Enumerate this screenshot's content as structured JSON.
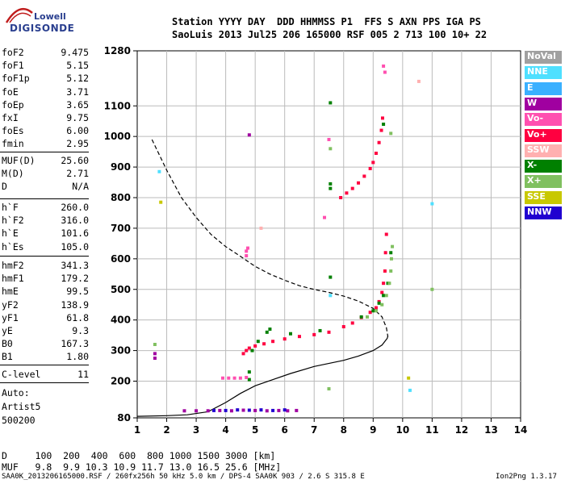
{
  "logo": {
    "line1": "Lowell",
    "line2": "DIGISONDE"
  },
  "header": {
    "row1": "Station YYYY DAY  DDD HHMMSS P1  FFS S AXN PPS IGA PS",
    "row2": "SaoLuis 2013 Jul25 206 165000 RSF 005 2 713 100 10+ 22"
  },
  "params_group1": [
    {
      "k": "foF2",
      "v": "9.475"
    },
    {
      "k": "foF1",
      "v": "5.15"
    },
    {
      "k": "foF1p",
      "v": "5.12"
    },
    {
      "k": "foE",
      "v": "3.71"
    },
    {
      "k": "foEp",
      "v": "3.65"
    },
    {
      "k": "fxI",
      "v": "9.75"
    },
    {
      "k": "foEs",
      "v": "6.00"
    },
    {
      "k": "fmin",
      "v": "2.95"
    }
  ],
  "params_group2": [
    {
      "k": "MUF(D)",
      "v": "25.60"
    },
    {
      "k": "M(D)",
      "v": "2.71"
    },
    {
      "k": "D",
      "v": "N/A"
    }
  ],
  "params_group3": [
    {
      "k": "h`F",
      "v": "260.0"
    },
    {
      "k": "h`F2",
      "v": "316.0"
    },
    {
      "k": "h`E",
      "v": "101.6"
    },
    {
      "k": "h`Es",
      "v": "105.0"
    }
  ],
  "params_group4": [
    {
      "k": "hmF2",
      "v": "341.3"
    },
    {
      "k": "hmF1",
      "v": "179.2"
    },
    {
      "k": "hmE",
      "v": "99.5"
    },
    {
      "k": "yF2",
      "v": "138.9"
    },
    {
      "k": "yF1",
      "v": "61.8"
    },
    {
      "k": "yE",
      "v": "9.3"
    },
    {
      "k": "B0",
      "v": "167.3"
    },
    {
      "k": "B1",
      "v": "1.80"
    }
  ],
  "params_group5": [
    {
      "k": "C-level",
      "v": "11"
    }
  ],
  "autoscale": {
    "line1": "Auto:",
    "line2": "Artist5",
    "line3": "500200"
  },
  "legend": [
    {
      "label": "NoVal",
      "color": "#a0a0a0"
    },
    {
      "label": "NNE",
      "color": "#4fe0ff"
    },
    {
      "label": "E",
      "color": "#3ab0ff"
    },
    {
      "label": "W",
      "color": "#a000a0"
    },
    {
      "label": "Vo-",
      "color": "#ff50b0"
    },
    {
      "label": "Vo+",
      "color": "#ff0040"
    },
    {
      "label": "SSW",
      "color": "#ffb0b0"
    },
    {
      "label": "X-",
      "color": "#008000"
    },
    {
      "label": "X+",
      "color": "#80c060"
    },
    {
      "label": "SSE",
      "color": "#c8c800"
    },
    {
      "label": "NNW",
      "color": "#2000d0"
    }
  ],
  "dmuf": {
    "row1": "D     100  200  400  600  800 1000 1500 3000 [km]",
    "row2": "MUF   9.8  9.9 10.3 10.9 11.7 13.0 16.5 25.6 [MHz]"
  },
  "footer": {
    "left": "SAA0K_2013206165000.RSF / 260fx256h 50 kHz 5.0 km / DPS-4 SAA0K 903 / 2.6 S 315.8 E",
    "right": "Ion2Png 1.3.17"
  },
  "chart_data": {
    "type": "scatter",
    "x_ticks": [
      1,
      2,
      3,
      4,
      5,
      6,
      7,
      8,
      9,
      10,
      11,
      12,
      13,
      14
    ],
    "y_ticks": [
      80,
      200,
      300,
      400,
      500,
      600,
      700,
      800,
      900,
      1000,
      1100,
      1280
    ],
    "xlim": [
      1,
      14
    ],
    "ylim": [
      80,
      1280
    ],
    "grid": true,
    "legend_position": "right",
    "series": [
      {
        "color": "#000000",
        "dash": true,
        "points": [
          [
            1.5,
            990
          ],
          [
            2.0,
            890
          ],
          [
            2.5,
            800
          ],
          [
            3.0,
            735
          ],
          [
            3.5,
            680
          ],
          [
            4.0,
            640
          ],
          [
            4.5,
            608
          ],
          [
            5.0,
            575
          ],
          [
            5.5,
            550
          ],
          [
            6.0,
            530
          ],
          [
            6.5,
            512
          ],
          [
            7.0,
            500
          ],
          [
            7.5,
            490
          ],
          [
            8.0,
            478
          ],
          [
            8.5,
            462
          ],
          [
            9.0,
            438
          ],
          [
            9.3,
            410
          ],
          [
            9.45,
            375
          ],
          [
            9.5,
            345
          ]
        ]
      },
      {
        "color": "#000000",
        "dash": false,
        "points": [
          [
            1.0,
            85
          ],
          [
            2.0,
            87
          ],
          [
            2.7,
            90
          ],
          [
            3.4,
            100
          ],
          [
            4.0,
            130
          ],
          [
            4.5,
            160
          ],
          [
            5.0,
            185
          ],
          [
            5.6,
            205
          ],
          [
            6.2,
            225
          ],
          [
            7.0,
            248
          ],
          [
            8.0,
            268
          ],
          [
            8.5,
            282
          ],
          [
            9.0,
            300
          ],
          [
            9.3,
            318
          ],
          [
            9.48,
            340
          ],
          [
            9.5,
            348
          ]
        ]
      },
      {
        "color": "#ff0040",
        "marker": true,
        "points": [
          [
            4.6,
            290
          ],
          [
            4.7,
            300
          ],
          [
            4.8,
            308
          ],
          [
            5.0,
            315
          ],
          [
            5.3,
            322
          ],
          [
            5.6,
            330
          ],
          [
            6.0,
            338
          ],
          [
            6.5,
            346
          ],
          [
            7.0,
            352
          ],
          [
            7.5,
            360
          ],
          [
            8.0,
            378
          ],
          [
            8.3,
            390
          ],
          [
            8.6,
            408
          ],
          [
            8.9,
            425
          ],
          [
            9.1,
            440
          ],
          [
            9.2,
            460
          ],
          [
            9.3,
            490
          ],
          [
            9.35,
            520
          ],
          [
            9.4,
            560
          ],
          [
            9.42,
            620
          ],
          [
            9.45,
            680
          ]
        ]
      },
      {
        "color": "#ff0040",
        "marker": true,
        "points": [
          [
            7.9,
            800
          ],
          [
            8.1,
            815
          ],
          [
            8.3,
            830
          ],
          [
            8.5,
            848
          ],
          [
            8.7,
            870
          ],
          [
            8.9,
            895
          ],
          [
            9.0,
            915
          ],
          [
            9.1,
            945
          ],
          [
            9.2,
            980
          ],
          [
            9.28,
            1020
          ],
          [
            9.32,
            1060
          ]
        ]
      },
      {
        "color": "#008000",
        "marker": true,
        "points": [
          [
            4.8,
            205
          ],
          [
            4.8,
            230
          ],
          [
            4.9,
            300
          ],
          [
            5.1,
            330
          ],
          [
            5.4,
            360
          ],
          [
            5.5,
            370
          ],
          [
            6.2,
            355
          ],
          [
            7.2,
            365
          ],
          [
            8.6,
            410
          ],
          [
            9.0,
            430
          ],
          [
            9.2,
            455
          ],
          [
            9.35,
            480
          ],
          [
            9.5,
            520
          ],
          [
            9.6,
            620
          ]
        ]
      },
      {
        "color": "#80c060",
        "marker": true,
        "points": [
          [
            8.8,
            410
          ],
          [
            9.1,
            430
          ],
          [
            9.3,
            450
          ],
          [
            9.45,
            480
          ],
          [
            9.55,
            520
          ],
          [
            9.6,
            560
          ],
          [
            9.62,
            600
          ],
          [
            9.65,
            640
          ]
        ]
      },
      {
        "color": "#a000a0",
        "marker": true,
        "points": [
          [
            2.6,
            103
          ],
          [
            3.0,
            103
          ],
          [
            3.4,
            103
          ],
          [
            3.8,
            104
          ],
          [
            4.2,
            103
          ],
          [
            4.6,
            105
          ],
          [
            5.0,
            104
          ],
          [
            5.4,
            103
          ],
          [
            5.8,
            104
          ],
          [
            6.1,
            103
          ],
          [
            6.4,
            104
          ]
        ]
      },
      {
        "color": "#2000d0",
        "marker": true,
        "points": [
          [
            3.6,
            104
          ],
          [
            4.0,
            104
          ],
          [
            4.4,
            106
          ],
          [
            4.8,
            105
          ],
          [
            5.2,
            106
          ],
          [
            5.6,
            104
          ],
          [
            6.0,
            106
          ]
        ]
      },
      {
        "color": "#ff50b0",
        "marker": true,
        "points": [
          [
            3.9,
            210
          ],
          [
            4.1,
            210
          ],
          [
            4.3,
            210
          ],
          [
            4.5,
            210
          ],
          [
            4.7,
            212
          ],
          [
            4.7,
            610
          ],
          [
            4.7,
            625
          ],
          [
            4.75,
            635
          ],
          [
            7.35,
            735
          ],
          [
            7.5,
            990
          ],
          [
            9.35,
            1230
          ],
          [
            9.4,
            1210
          ]
        ]
      },
      {
        "color": "#4fe0ff",
        "marker": true,
        "points": [
          [
            7.55,
            480
          ],
          [
            10.25,
            170
          ],
          [
            11.0,
            780
          ],
          [
            1.75,
            885
          ]
        ]
      },
      {
        "color": "#80c060",
        "marker": true,
        "points": [
          [
            7.55,
            960
          ],
          [
            11.0,
            500
          ],
          [
            1.6,
            320
          ],
          [
            7.5,
            175
          ],
          [
            9.6,
            1010
          ]
        ]
      },
      {
        "color": "#008000",
        "marker": true,
        "points": [
          [
            7.55,
            1110
          ],
          [
            7.55,
            540
          ],
          [
            7.55,
            830
          ],
          [
            7.55,
            845
          ],
          [
            9.35,
            1040
          ]
        ]
      },
      {
        "color": "#c8c800",
        "marker": true,
        "points": [
          [
            1.8,
            785
          ],
          [
            10.2,
            210
          ]
        ]
      },
      {
        "color": "#ffb0b0",
        "marker": true,
        "points": [
          [
            10.55,
            1180
          ],
          [
            5.2,
            700
          ]
        ]
      },
      {
        "color": "#a000a0",
        "marker": true,
        "points": [
          [
            1.6,
            275
          ],
          [
            1.6,
            290
          ],
          [
            4.8,
            1005
          ]
        ]
      }
    ]
  }
}
